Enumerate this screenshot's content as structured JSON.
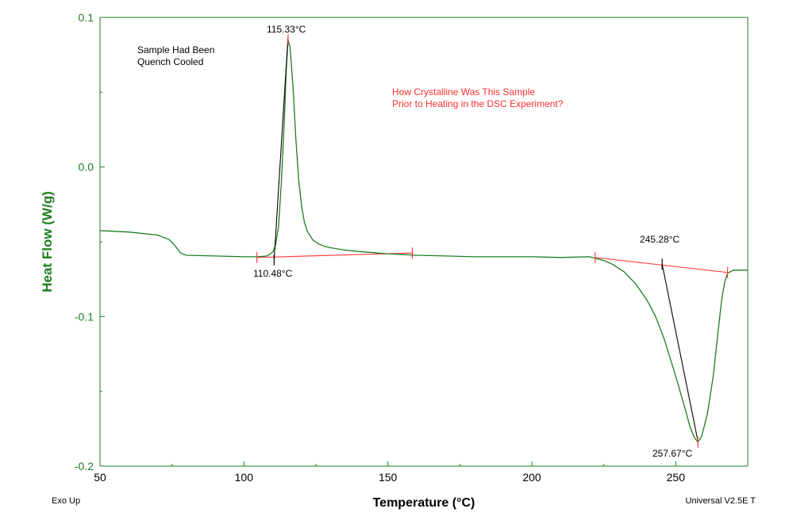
{
  "chart_data": {
    "type": "line",
    "xlabel": "Temperature (°C)",
    "ylabel": "Heat Flow (W/g)",
    "xlim": [
      50,
      275
    ],
    "ylim": [
      -0.2,
      0.1
    ],
    "x_ticks": [
      50,
      100,
      150,
      200,
      250
    ],
    "x_tick_labels": [
      "50",
      "100",
      "150",
      "200",
      "250"
    ],
    "y_ticks": [
      0.1,
      0.0,
      -0.1,
      -0.2
    ],
    "y_tick_labels": [
      "0.1",
      "0.0",
      "-0.1",
      "-0.2"
    ],
    "grid": false,
    "series": [
      {
        "color": "#1e7d1e",
        "x": [
          50,
          60,
          70,
          74,
          76,
          78,
          80,
          90,
          100,
          105,
          108,
          110,
          111,
          112,
          113,
          114,
          114.7,
          115.3,
          116,
          117,
          118,
          119,
          120,
          121,
          122,
          124,
          126,
          128,
          130,
          135,
          140,
          150,
          160,
          170,
          180,
          190,
          200,
          210,
          220,
          225,
          228,
          232,
          236,
          240,
          243,
          246,
          250,
          253,
          255,
          256.5,
          257.7,
          259,
          261,
          263,
          265,
          266,
          267,
          268,
          270,
          272,
          275
        ],
        "y": [
          -0.0425,
          -0.0435,
          -0.0455,
          -0.0485,
          -0.0525,
          -0.0575,
          -0.059,
          -0.0595,
          -0.06,
          -0.06,
          -0.0595,
          -0.057,
          -0.052,
          -0.04,
          -0.01,
          0.03,
          0.065,
          0.085,
          0.08,
          0.055,
          0.02,
          -0.008,
          -0.026,
          -0.037,
          -0.043,
          -0.049,
          -0.0515,
          -0.053,
          -0.054,
          -0.0555,
          -0.0565,
          -0.058,
          -0.059,
          -0.0595,
          -0.06,
          -0.06,
          -0.06,
          -0.0605,
          -0.06,
          -0.0625,
          -0.065,
          -0.07,
          -0.078,
          -0.089,
          -0.1,
          -0.115,
          -0.14,
          -0.16,
          -0.174,
          -0.181,
          -0.184,
          -0.18,
          -0.165,
          -0.14,
          -0.105,
          -0.088,
          -0.077,
          -0.071,
          -0.069,
          -0.069,
          -0.069
        ]
      }
    ],
    "baselines": [
      {
        "color": "#ff4040",
        "x": [
          104.5,
          158.5
        ],
        "y": [
          -0.0605,
          -0.0575
        ]
      },
      {
        "color": "#ff4040",
        "x": [
          222,
          268
        ],
        "y": [
          -0.0605,
          -0.0705
        ]
      }
    ],
    "tangents": [
      {
        "color": "#000000",
        "x": [
          110.48,
          115.33
        ],
        "y": [
          -0.062,
          0.087
        ]
      },
      {
        "color": "#000000",
        "x": [
          245.28,
          257.67
        ],
        "y": [
          -0.065,
          -0.183
        ]
      }
    ],
    "markers": [
      {
        "color": "#ff4040",
        "x": 104.5,
        "y": -0.0605
      },
      {
        "color": "#ff4040",
        "x": 158.5,
        "y": -0.0575
      },
      {
        "color": "#ff4040",
        "x": 115.33,
        "y": 0.085
      },
      {
        "color": "#ff4040",
        "x": 222,
        "y": -0.0605
      },
      {
        "color": "#ff4040",
        "x": 268,
        "y": -0.0705
      },
      {
        "color": "#ff4040",
        "x": 257.67,
        "y": -0.184
      },
      {
        "color": "#000000",
        "x": 110.48,
        "y": -0.062
      },
      {
        "color": "#000000",
        "x": 245.28,
        "y": -0.065
      }
    ],
    "annotations": {
      "peak1_temp": "115.33°C",
      "onset1_temp": "110.48°C",
      "onset2_temp": "245.28°C",
      "peak2_temp": "257.67°C",
      "note_line1": "Sample Had Been",
      "note_line2": "Quench Cooled",
      "question_line1": "How Crystalline Was This Sample",
      "question_line2": "Prior to Heating in the DSC Experiment?"
    },
    "footer_left": "Exo Up",
    "footer_right": "Universal V2.5E T"
  }
}
